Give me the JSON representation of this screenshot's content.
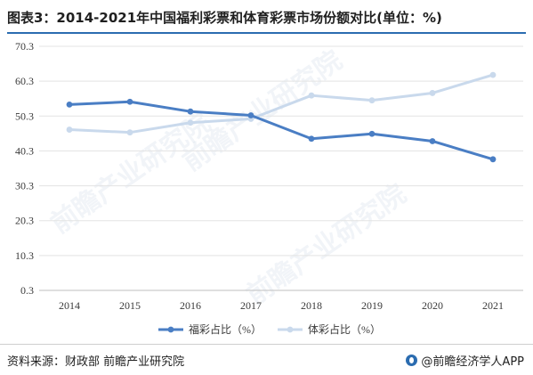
{
  "header": {
    "title": "图表3：2014-2021年中国福利彩票和体育彩票市场份额对比(单位：%)"
  },
  "footer": {
    "source": "资料来源：财政部 前瞻产业研究院",
    "brand": "@前瞻经济学人APP"
  },
  "colors": {
    "series_welfare": "#4a7ec4",
    "series_sports": "#c9d9ec",
    "title_rule": "#2b6cb0"
  },
  "chart_data": {
    "type": "line",
    "title": "图表3：2014-2021年中国福利彩票和体育彩票市场份额对比(单位：%)",
    "x": [
      "2014",
      "2015",
      "2016",
      "2017",
      "2018",
      "2019",
      "2020",
      "2021"
    ],
    "ylim": [
      0.3,
      70.3
    ],
    "yticks": [
      "0.3",
      "10.3",
      "20.3",
      "30.3",
      "40.3",
      "50.3",
      "60.3",
      "70.3"
    ],
    "grid": true,
    "legend_position": "bottom-center",
    "series": [
      {
        "name": "福彩占比（%）",
        "values": [
          53.6,
          54.4,
          51.6,
          50.5,
          43.8,
          45.2,
          43.1,
          37.9
        ],
        "color": "#4a7ec4"
      },
      {
        "name": "体彩占比（%）",
        "values": [
          46.4,
          45.6,
          48.4,
          49.5,
          56.2,
          54.8,
          56.9,
          62.1
        ],
        "color": "#c9d9ec"
      }
    ]
  }
}
